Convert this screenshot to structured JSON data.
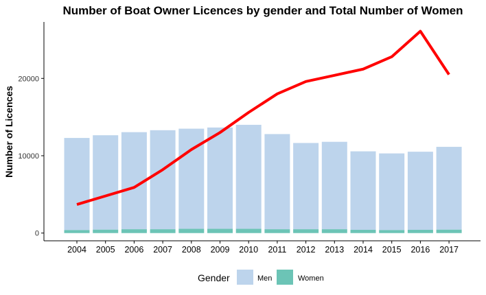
{
  "chart_data": {
    "type": "bar",
    "title": "Number of Boat Owner Licences by gender and Total Number of Women",
    "xlabel": "",
    "ylabel": "Number of Licences",
    "categories": [
      "2004",
      "2005",
      "2006",
      "2007",
      "2008",
      "2009",
      "2010",
      "2011",
      "2012",
      "2013",
      "2014",
      "2015",
      "2016",
      "2017"
    ],
    "y_ticks": [
      0,
      10000,
      20000
    ],
    "y_tick_labels": [
      "0",
      "10000",
      "20000"
    ],
    "ylim": [
      -1000,
      27300
    ],
    "series": [
      {
        "name": "Men",
        "type": "bar",
        "color": "#bdd4ec",
        "values": [
          11900,
          12200,
          12550,
          12800,
          12950,
          13100,
          13450,
          12300,
          11150,
          11300,
          10150,
          9900,
          10100,
          10700
        ]
      },
      {
        "name": "Women",
        "type": "bar",
        "color": "#6cc4b6",
        "values": [
          400,
          450,
          500,
          500,
          550,
          550,
          550,
          500,
          500,
          500,
          420,
          400,
          420,
          450
        ]
      },
      {
        "type": "line",
        "color": "#ff0000",
        "values": [
          3700,
          4800,
          5900,
          8200,
          10800,
          13000,
          15600,
          18000,
          19600,
          20400,
          21200,
          22800,
          26100,
          20500
        ]
      }
    ],
    "legend": {
      "title": "Gender",
      "position": "bottom",
      "items": [
        {
          "label": "Men",
          "color": "#bdd4ec"
        },
        {
          "label": "Women",
          "color": "#6cc4b6"
        }
      ]
    },
    "grid": false
  }
}
